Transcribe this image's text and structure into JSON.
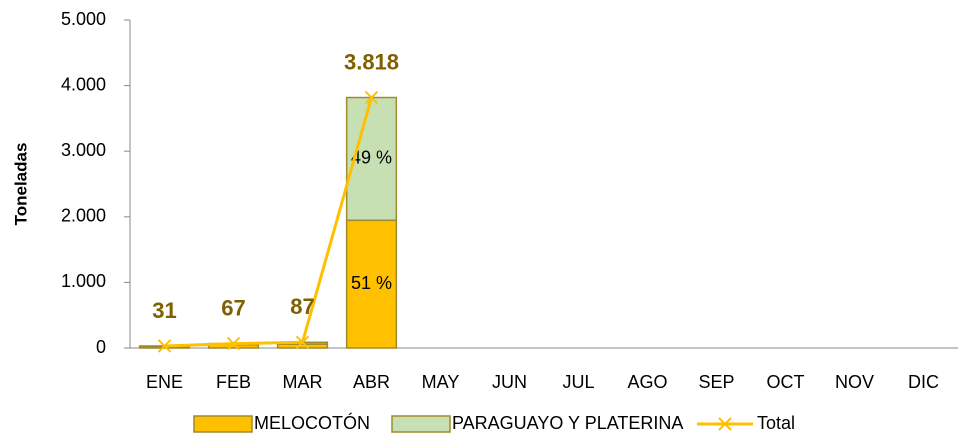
{
  "chart_data": {
    "type": "stacked_bar_line",
    "y_label": "Toneladas",
    "categories": [
      "ENE",
      "FEB",
      "MAR",
      "ABR",
      "MAY",
      "JUN",
      "JUL",
      "AGO",
      "SEP",
      "OCT",
      "NOV",
      "DIC"
    ],
    "ylim": [
      0,
      5000
    ],
    "yticks": [
      0,
      {
        "value": 1000,
        "label": "1.000"
      },
      {
        "value": 2000,
        "label": "2.000"
      },
      {
        "value": 3000,
        "label": "3.000"
      },
      {
        "value": 4000,
        "label": "4.000"
      },
      {
        "value": 5000,
        "label": "5.000"
      }
    ],
    "series": [
      {
        "name": "MELOCOTÓN",
        "kind": "bar",
        "color": "#ffc000",
        "values": [
          22,
          50,
          60,
          1947,
          null,
          null,
          null,
          null,
          null,
          null,
          null,
          null
        ],
        "share_labels": [
          null,
          null,
          null,
          "51 %",
          null,
          null,
          null,
          null,
          null,
          null,
          null,
          null
        ]
      },
      {
        "name": "PARAGUAYO Y PLATERINA",
        "kind": "bar",
        "color": "#c6e0b4",
        "values": [
          9,
          17,
          27,
          1871,
          null,
          null,
          null,
          null,
          null,
          null,
          null,
          null
        ],
        "share_labels": [
          null,
          null,
          null,
          "49 %",
          null,
          null,
          null,
          null,
          null,
          null,
          null,
          null
        ]
      },
      {
        "name": "Total",
        "kind": "line",
        "color": "#ffc000",
        "values": [
          31,
          67,
          87,
          3818,
          null,
          null,
          null,
          null,
          null,
          null,
          null,
          null
        ],
        "value_labels": [
          "31",
          "67",
          "87",
          "3.818",
          null,
          null,
          null,
          null,
          null,
          null,
          null,
          null
        ]
      }
    ],
    "legend": "bottom"
  }
}
